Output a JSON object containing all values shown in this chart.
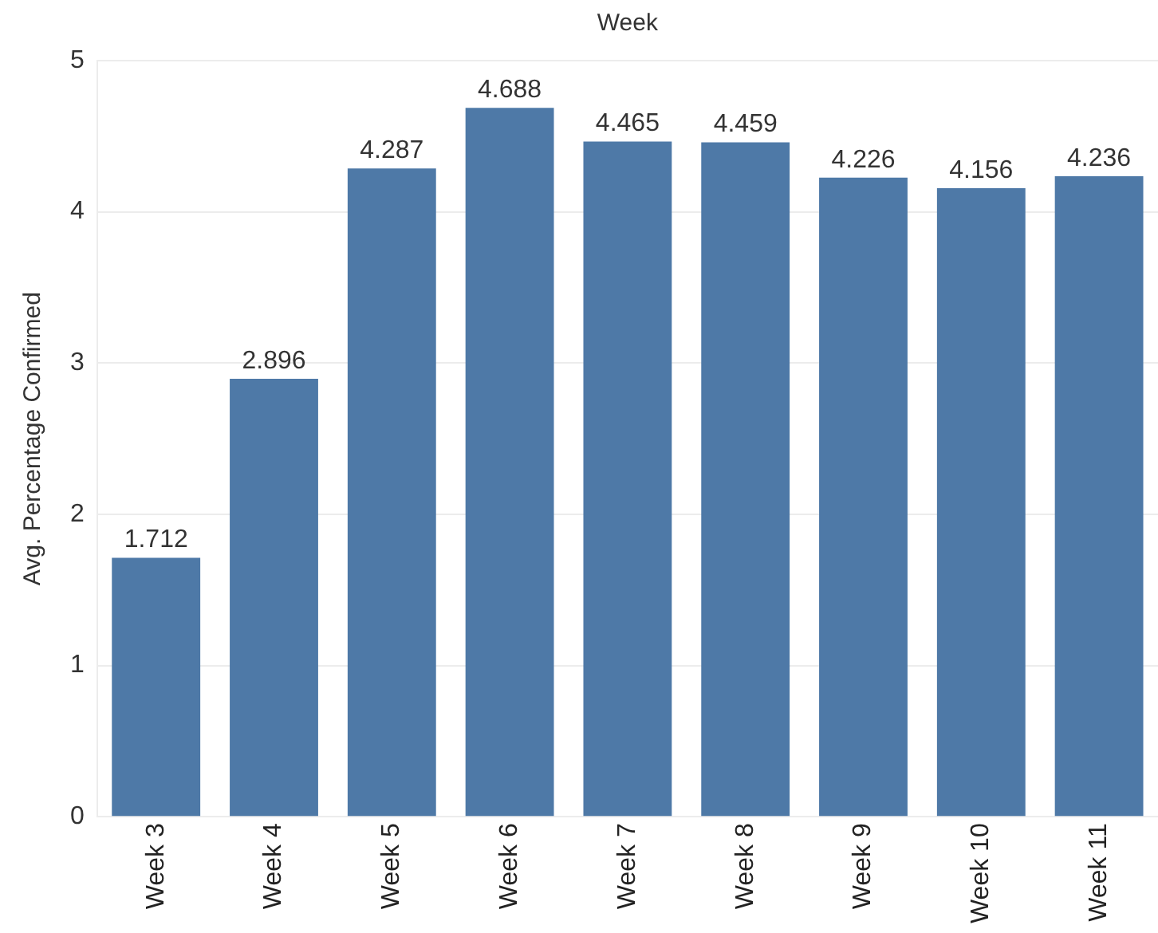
{
  "chart_data": {
    "type": "bar",
    "xlabel": "Week",
    "ylabel": "Avg. Percentage Confirmed",
    "categories": [
      "Week 3",
      "Week 4",
      "Week 5",
      "Week 6",
      "Week 7",
      "Week 8",
      "Week 9",
      "Week 10",
      "Week 11"
    ],
    "values": [
      1.712,
      2.896,
      4.287,
      4.688,
      4.465,
      4.459,
      4.226,
      4.156,
      4.236
    ],
    "color": "#4e79a7",
    "ylim": [
      0,
      5
    ],
    "yticks": [
      0,
      1,
      2,
      3,
      4,
      5
    ],
    "grid": "y",
    "data_labels": true
  }
}
